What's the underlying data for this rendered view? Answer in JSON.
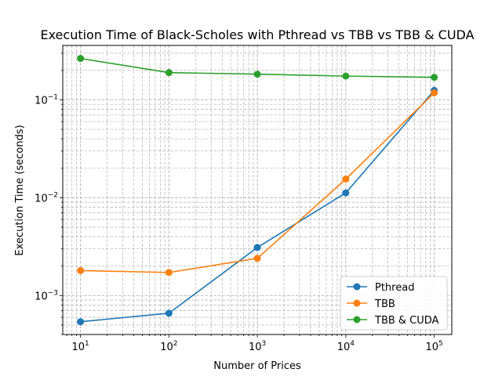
{
  "chart_data": {
    "type": "line",
    "title": "Execution Time of Black-Scholes with Pthread vs TBB vs TBB & CUDA",
    "xlabel": "Number of Prices",
    "ylabel": "Execution Time (seconds)",
    "xscale": "log",
    "yscale": "log",
    "xlim": [
      6.3,
      158000
    ],
    "ylim": [
      0.0004,
      0.36
    ],
    "grid": true,
    "grid_minor": true,
    "legend_position": "lower right",
    "x": [
      10,
      100,
      1000,
      10000,
      100000
    ],
    "x_ticks": [
      10,
      100,
      1000,
      10000,
      100000
    ],
    "x_tick_labels": [
      {
        "base": "10",
        "exp": "1"
      },
      {
        "base": "10",
        "exp": "2"
      },
      {
        "base": "10",
        "exp": "3"
      },
      {
        "base": "10",
        "exp": "4"
      },
      {
        "base": "10",
        "exp": "5"
      }
    ],
    "y_ticks": [
      0.001,
      0.01,
      0.1
    ],
    "y_tick_labels": [
      {
        "base": "10",
        "exp": "−3"
      },
      {
        "base": "10",
        "exp": "−2"
      },
      {
        "base": "10",
        "exp": "−1"
      }
    ],
    "series": [
      {
        "name": "Pthread",
        "color": "#1f77b4",
        "values": [
          0.00054,
          0.00066,
          0.0031,
          0.0112,
          0.125
        ]
      },
      {
        "name": "TBB",
        "color": "#ff7f0e",
        "values": [
          0.0018,
          0.00172,
          0.0024,
          0.0155,
          0.118
        ]
      },
      {
        "name": "TBB & CUDA",
        "color": "#2ca02c",
        "values": [
          0.265,
          0.19,
          0.183,
          0.175,
          0.17
        ]
      }
    ]
  }
}
